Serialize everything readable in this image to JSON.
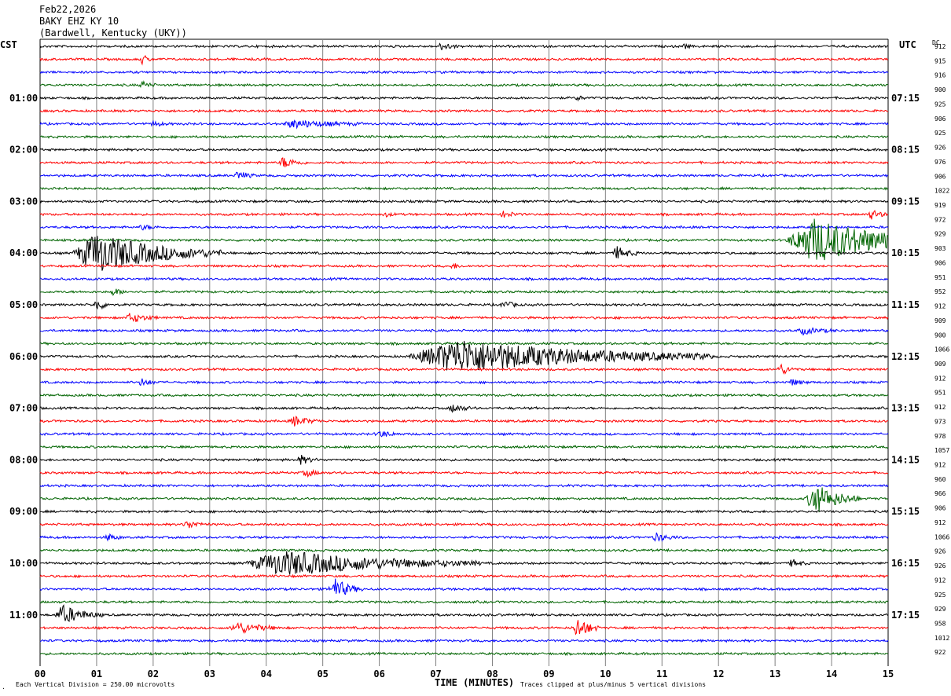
{
  "header": {
    "date": "Feb22,2026",
    "station": "BAKY EHZ KY 10",
    "location": "(Bardwell, Kentucky (UKY))"
  },
  "left_tz": "CST",
  "right_tz": "UTC",
  "dc_label": "DC",
  "footer": {
    "scale": "Each Vertical Division =  250.00 microvolts",
    "xlabel": "TIME (MINUTES)",
    "clip_note": "Traces clipped at plus/minus 5 vertical divisions"
  },
  "colors": {
    "trace_cycle": [
      "#000000",
      "#ff0000",
      "#0000ff",
      "#006400"
    ],
    "grid": "#808080"
  },
  "chart_data": {
    "type": "line",
    "title": "",
    "xlabel": "TIME (MINUTES)",
    "ylabel": "",
    "x_ticks": [
      "00",
      "01",
      "02",
      "03",
      "04",
      "05",
      "06",
      "07",
      "08",
      "09",
      "10",
      "11",
      "12",
      "13",
      "14",
      "15"
    ],
    "xlim": [
      0,
      15
    ],
    "rows": 48,
    "left_labels": [
      "01:00",
      "02:00",
      "03:00",
      "04:00",
      "05:00",
      "06:00",
      "07:00",
      "08:00",
      "09:00",
      "10:00",
      "11:00"
    ],
    "left_label_rows": [
      4,
      8,
      12,
      16,
      20,
      24,
      28,
      32,
      36,
      40,
      44
    ],
    "right_labels": [
      "07:15",
      "08:15",
      "09:15",
      "10:15",
      "11:15",
      "12:15",
      "13:15",
      "14:15",
      "15:15",
      "16:15",
      "17:15"
    ],
    "right_label_rows": [
      4,
      8,
      12,
      16,
      20,
      24,
      28,
      32,
      36,
      40,
      44
    ],
    "dc_values": [
      "912",
      "915",
      "916",
      "900",
      "925",
      "906",
      "925",
      "926",
      "976",
      "906",
      "1022",
      "919",
      "972",
      "929",
      "903",
      "906",
      "951",
      "952",
      "912",
      "909",
      "900",
      "1066",
      "909",
      "912",
      "951",
      "912",
      "973",
      "978",
      "1057",
      "912",
      "960",
      "966",
      "906",
      "912",
      "1066",
      "926",
      "926",
      "912",
      "925",
      "929",
      "958",
      "1012",
      "922"
    ],
    "events": [
      {
        "row": 0,
        "t": 7.1,
        "amp": 5,
        "dur": 0.3,
        "color": 0
      },
      {
        "row": 0,
        "t": 11.4,
        "amp": 3,
        "dur": 0.15,
        "color": 0
      },
      {
        "row": 1,
        "t": 1.8,
        "amp": 6,
        "dur": 0.2,
        "color": 1
      },
      {
        "row": 3,
        "t": 1.8,
        "amp": 5,
        "dur": 0.25,
        "color": 3
      },
      {
        "row": 4,
        "t": 9.5,
        "amp": 3,
        "dur": 0.2,
        "color": 0
      },
      {
        "row": 6,
        "t": 2.0,
        "amp": 3,
        "dur": 0.3,
        "color": 2
      },
      {
        "row": 6,
        "t": 4.5,
        "amp": 5,
        "dur": 1.2,
        "color": 2
      },
      {
        "row": 9,
        "t": 4.3,
        "amp": 7,
        "dur": 0.4,
        "color": 1
      },
      {
        "row": 10,
        "t": 3.5,
        "amp": 6,
        "dur": 0.3,
        "color": 2
      },
      {
        "row": 13,
        "t": 6.1,
        "amp": 3,
        "dur": 0.2,
        "color": 1
      },
      {
        "row": 13,
        "t": 8.2,
        "amp": 4,
        "dur": 0.3,
        "color": 1
      },
      {
        "row": 13,
        "t": 14.7,
        "amp": 6,
        "dur": 0.3,
        "color": 1
      },
      {
        "row": 14,
        "t": 1.8,
        "amp": 3,
        "dur": 0.3,
        "color": 2
      },
      {
        "row": 15,
        "t": 13.7,
        "amp": 28,
        "dur": 2.6,
        "color": 3
      },
      {
        "row": 16,
        "t": 1.0,
        "amp": 26,
        "dur": 2.2,
        "color": 0
      },
      {
        "row": 16,
        "t": 10.2,
        "amp": 8,
        "dur": 0.4,
        "color": 0
      },
      {
        "row": 17,
        "t": 7.3,
        "amp": 4,
        "dur": 0.2,
        "color": 1
      },
      {
        "row": 19,
        "t": 1.3,
        "amp": 4,
        "dur": 0.3,
        "color": 3
      },
      {
        "row": 20,
        "t": 1.0,
        "amp": 7,
        "dur": 0.3,
        "color": 0
      },
      {
        "row": 20,
        "t": 8.2,
        "amp": 5,
        "dur": 0.3,
        "color": 0
      },
      {
        "row": 21,
        "t": 1.6,
        "amp": 6,
        "dur": 0.5,
        "color": 1
      },
      {
        "row": 22,
        "t": 13.5,
        "amp": 4,
        "dur": 0.6,
        "color": 2
      },
      {
        "row": 24,
        "t": 7.4,
        "amp": 22,
        "dur": 4.5,
        "color": 0
      },
      {
        "row": 25,
        "t": 13.1,
        "amp": 7,
        "dur": 0.3,
        "color": 1
      },
      {
        "row": 26,
        "t": 1.8,
        "amp": 5,
        "dur": 0.3,
        "color": 2
      },
      {
        "row": 26,
        "t": 13.3,
        "amp": 4,
        "dur": 0.3,
        "color": 2
      },
      {
        "row": 28,
        "t": 7.3,
        "amp": 5,
        "dur": 0.4,
        "color": 0
      },
      {
        "row": 29,
        "t": 4.5,
        "amp": 6,
        "dur": 0.5,
        "color": 1
      },
      {
        "row": 30,
        "t": 6.0,
        "amp": 4,
        "dur": 0.4,
        "color": 2
      },
      {
        "row": 32,
        "t": 4.6,
        "amp": 6,
        "dur": 0.3,
        "color": 0
      },
      {
        "row": 33,
        "t": 4.7,
        "amp": 5,
        "dur": 0.3,
        "color": 1
      },
      {
        "row": 35,
        "t": 13.7,
        "amp": 20,
        "dur": 0.8,
        "color": 3
      },
      {
        "row": 37,
        "t": 2.6,
        "amp": 5,
        "dur": 0.4,
        "color": 1
      },
      {
        "row": 38,
        "t": 1.2,
        "amp": 4,
        "dur": 0.3,
        "color": 2
      },
      {
        "row": 38,
        "t": 10.9,
        "amp": 5,
        "dur": 0.4,
        "color": 2
      },
      {
        "row": 40,
        "t": 4.3,
        "amp": 16,
        "dur": 3.5,
        "color": 0
      },
      {
        "row": 40,
        "t": 13.3,
        "amp": 5,
        "dur": 0.3,
        "color": 0
      },
      {
        "row": 42,
        "t": 5.2,
        "amp": 14,
        "dur": 0.5,
        "color": 2
      },
      {
        "row": 44,
        "t": 0.4,
        "amp": 12,
        "dur": 0.7,
        "color": 0
      },
      {
        "row": 45,
        "t": 3.5,
        "amp": 7,
        "dur": 0.8,
        "color": 1
      },
      {
        "row": 45,
        "t": 9.5,
        "amp": 14,
        "dur": 0.4,
        "color": 1
      }
    ]
  }
}
